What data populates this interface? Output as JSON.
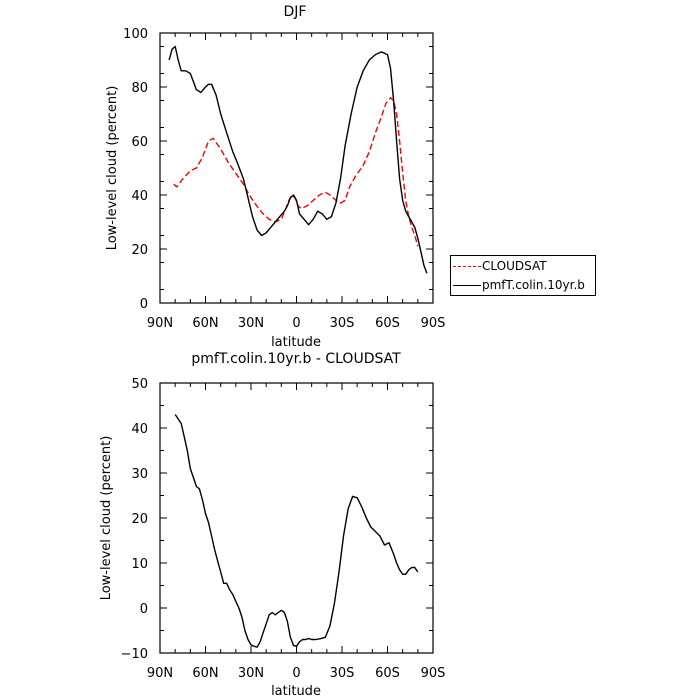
{
  "chart_data": [
    {
      "type": "line",
      "title": "DJF",
      "xlabel": "latitude",
      "ylabel": "Low-level cloud (percent)",
      "xlim": [
        90,
        -90
      ],
      "ylim": [
        0,
        100
      ],
      "xtick_values": [
        90,
        60,
        30,
        0,
        -30,
        -60,
        -90
      ],
      "xtick_labels": [
        "90N",
        "60N",
        "30N",
        "0",
        "30S",
        "60S",
        "90S"
      ],
      "ytick_values": [
        0,
        20,
        40,
        60,
        80,
        100
      ],
      "ytick_labels": [
        "0",
        "20",
        "40",
        "60",
        "80",
        "100"
      ],
      "legend_position": "right",
      "series": [
        {
          "name": "CLOUDSAT",
          "color": "#ff0000",
          "dash": "dashed",
          "x": [
            81,
            79,
            75,
            70,
            66,
            62,
            58,
            55,
            50,
            45,
            40,
            35,
            30,
            25,
            22,
            18,
            14,
            10,
            7,
            5,
            3,
            1,
            -1,
            -3,
            -7,
            -11,
            -15,
            -19,
            -22,
            -26,
            -29,
            -32,
            -35,
            -39,
            -44,
            -48,
            -52,
            -56,
            -59,
            -62,
            -64,
            -66,
            -68,
            -70,
            -72,
            -74,
            -76,
            -78,
            -80
          ],
          "y": [
            44,
            43,
            46,
            49,
            50,
            54,
            60,
            61,
            57,
            52,
            48,
            44,
            39,
            35,
            33,
            31,
            30,
            31,
            35,
            38,
            40,
            39,
            36,
            35,
            36,
            38,
            40,
            41,
            40,
            38,
            37,
            38,
            43,
            47,
            51,
            56,
            63,
            69,
            74,
            76,
            75,
            70,
            60,
            48,
            38,
            32,
            28,
            25,
            21
          ]
        },
        {
          "name": "pmfT.colin.10yr.b",
          "color": "#000000",
          "dash": "solid",
          "x": [
            84,
            82,
            80,
            78,
            76,
            73,
            70,
            68,
            66,
            63,
            60,
            58,
            56,
            53,
            50,
            46,
            42,
            39,
            35,
            32,
            29,
            26,
            23,
            20,
            17,
            14,
            11,
            8,
            6,
            4,
            2,
            0,
            -2,
            -5,
            -8,
            -11,
            -14,
            -17,
            -20,
            -23,
            -26,
            -29,
            -32,
            -36,
            -40,
            -44,
            -48,
            -52,
            -56,
            -60,
            -62,
            -64,
            -66,
            -68,
            -70,
            -72,
            -74,
            -76,
            -78,
            -80,
            -82,
            -84,
            -86
          ],
          "y": [
            90,
            94,
            95,
            90,
            86,
            86,
            85,
            82,
            79,
            78,
            80,
            81,
            81,
            77,
            70,
            63,
            56,
            52,
            46,
            39,
            32,
            27,
            25,
            26,
            28,
            30,
            32,
            34,
            36,
            39,
            40,
            38,
            33,
            31,
            29,
            31,
            34,
            33,
            31,
            32,
            37,
            46,
            58,
            70,
            80,
            86,
            90,
            92,
            93,
            92,
            87,
            75,
            60,
            46,
            38,
            34,
            32,
            30,
            28,
            24,
            19,
            14,
            11
          ]
        }
      ]
    },
    {
      "type": "line",
      "title": "pmfT.colin.10yr.b - CLOUDSAT",
      "xlabel": "latitude",
      "ylabel": "Low-level cloud (percent)",
      "xlim": [
        90,
        -90
      ],
      "ylim": [
        -10,
        50
      ],
      "xtick_values": [
        90,
        60,
        30,
        0,
        -30,
        -60,
        -90
      ],
      "xtick_labels": [
        "90N",
        "60N",
        "30N",
        "0",
        "30S",
        "60S",
        "90S"
      ],
      "ytick_values": [
        -10,
        0,
        10,
        20,
        30,
        40,
        50
      ],
      "ytick_labels": [
        "−10",
        "0",
        "10",
        "20",
        "30",
        "40",
        "50"
      ],
      "series": [
        {
          "color": "#000000",
          "dash": "solid",
          "x": [
            80,
            78,
            76,
            74,
            72,
            70,
            68,
            66,
            64,
            62,
            60,
            58,
            56,
            54,
            52,
            50,
            48,
            46,
            44,
            42,
            40,
            38,
            36,
            34,
            32,
            30,
            28,
            26,
            24,
            22,
            20,
            18,
            16,
            14,
            12,
            10,
            8,
            6,
            4,
            2,
            0,
            -2,
            -4,
            -6,
            -8,
            -10,
            -13,
            -16,
            -19,
            -22,
            -25,
            -28,
            -31,
            -34,
            -37,
            -40,
            -43,
            -46,
            -49,
            -52,
            -55,
            -58,
            -61,
            -64,
            -66,
            -68,
            -69,
            -70,
            -72,
            -74,
            -76,
            -78,
            -80
          ],
          "y": [
            43,
            42,
            41,
            38,
            35,
            31,
            29,
            27,
            26.5,
            24,
            21,
            19,
            16,
            13,
            10.5,
            8,
            5.5,
            5.5,
            4,
            3,
            1.5,
            0,
            -2,
            -5,
            -7,
            -8.2,
            -8.5,
            -8.7,
            -7.5,
            -5.5,
            -3.5,
            -1.5,
            -1,
            -1.5,
            -1,
            -0.5,
            -1,
            -3,
            -6.5,
            -8.3,
            -8.5,
            -7.5,
            -7,
            -7,
            -6.8,
            -7,
            -7,
            -6.8,
            -6.5,
            -4,
            1,
            8,
            16,
            22,
            24.8,
            24.5,
            22.5,
            20,
            18,
            17,
            16,
            14,
            14.5,
            12,
            10,
            8.5,
            8,
            7.5,
            7.5,
            8.5,
            9,
            9,
            8
          ]
        }
      ]
    }
  ]
}
